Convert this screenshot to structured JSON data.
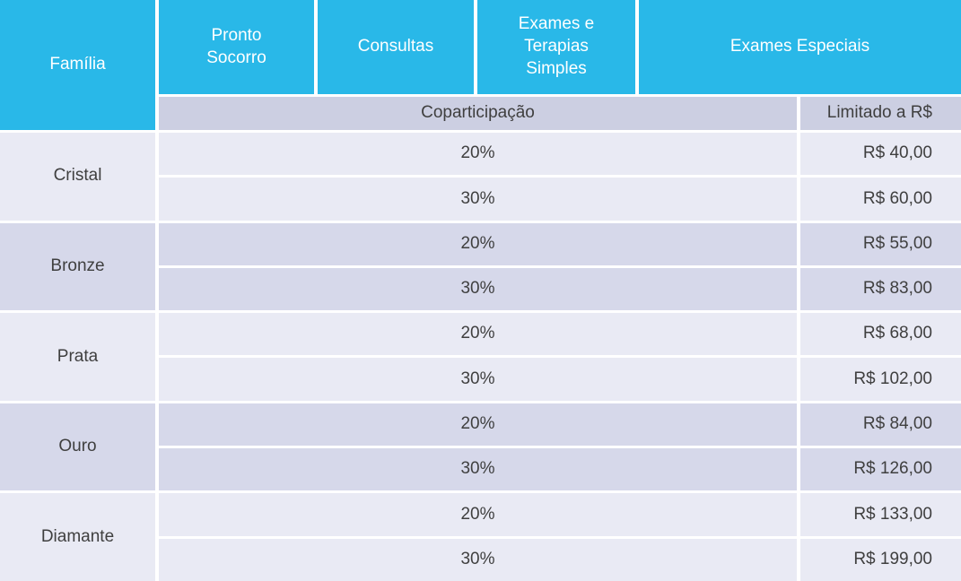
{
  "colors": {
    "header_bg": "#29b8e8",
    "header_text": "#ffffff",
    "subheader_bg": "#cccfe2",
    "row_light": "#e9eaf4",
    "row_dark": "#d6d8ea",
    "body_text": "#3f3f3f"
  },
  "header": {
    "family": "Família",
    "columns": [
      "Pronto Socorro",
      "Consultas",
      "Exames e Terapias Simples",
      "Exames Especiais"
    ],
    "subheader": {
      "coparticipation": "Coparticipação",
      "limit": "Limitado a R$"
    }
  },
  "groups": [
    {
      "family": "Cristal",
      "rows": [
        {
          "percent": "20%",
          "limit": "R$ 40,00"
        },
        {
          "percent": "30%",
          "limit": "R$ 60,00"
        }
      ]
    },
    {
      "family": "Bronze",
      "rows": [
        {
          "percent": "20%",
          "limit": "R$ 55,00"
        },
        {
          "percent": "30%",
          "limit": "R$ 83,00"
        }
      ]
    },
    {
      "family": "Prata",
      "rows": [
        {
          "percent": "20%",
          "limit": "R$ 68,00"
        },
        {
          "percent": "30%",
          "limit": "R$ 102,00"
        }
      ]
    },
    {
      "family": "Ouro",
      "rows": [
        {
          "percent": "20%",
          "limit": "R$ 84,00"
        },
        {
          "percent": "30%",
          "limit": "R$ 126,00"
        }
      ]
    },
    {
      "family": "Diamante",
      "rows": [
        {
          "percent": "20%",
          "limit": "R$ 133,00"
        },
        {
          "percent": "30%",
          "limit": "R$ 199,00"
        }
      ]
    }
  ],
  "chart_data": {
    "type": "table",
    "title": "",
    "columns": [
      "Família",
      "Pronto Socorro",
      "Consultas",
      "Exames e Terapias Simples",
      "Exames Especiais"
    ],
    "subheader_labels": [
      "Coparticipação",
      "Limitado a R$"
    ],
    "rows": [
      [
        "Cristal",
        "20%",
        "R$ 40,00"
      ],
      [
        "Cristal",
        "30%",
        "R$ 60,00"
      ],
      [
        "Bronze",
        "20%",
        "R$ 55,00"
      ],
      [
        "Bronze",
        "30%",
        "R$ 83,00"
      ],
      [
        "Prata",
        "20%",
        "R$ 68,00"
      ],
      [
        "Prata",
        "30%",
        "R$ 102,00"
      ],
      [
        "Ouro",
        "20%",
        "R$ 84,00"
      ],
      [
        "Ouro",
        "30%",
        "R$ 126,00"
      ],
      [
        "Diamante",
        "20%",
        "R$ 133,00"
      ],
      [
        "Diamante",
        "30%",
        "R$ 199,00"
      ]
    ]
  }
}
